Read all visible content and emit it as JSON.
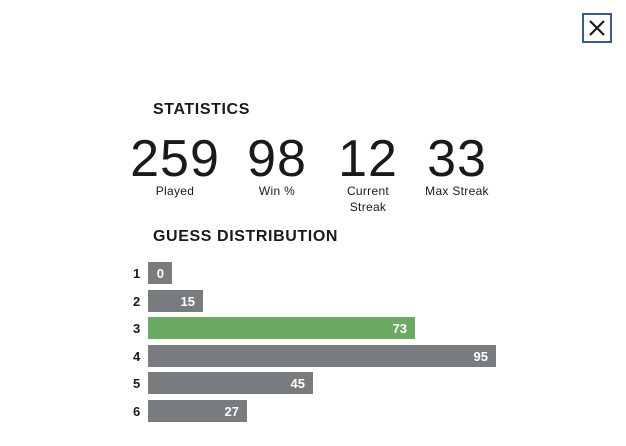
{
  "close": {
    "icon": "close-icon"
  },
  "statistics": {
    "heading": "STATISTICS",
    "played": {
      "value": "259",
      "label": "Played"
    },
    "win_pct": {
      "value": "98",
      "label": "Win %"
    },
    "current_streak": {
      "value": "12",
      "label_line1": "Current",
      "label_line2": "Streak"
    },
    "max_streak": {
      "value": "33",
      "label": "Max Streak"
    }
  },
  "distribution": {
    "heading": "GUESS DISTRIBUTION",
    "rows": [
      {
        "guess": "1",
        "count": 0
      },
      {
        "guess": "2",
        "count": 15
      },
      {
        "guess": "3",
        "count": 73,
        "highlight": true
      },
      {
        "guess": "4",
        "count": 95
      },
      {
        "guess": "5",
        "count": 45
      },
      {
        "guess": "6",
        "count": 27
      }
    ]
  },
  "colors": {
    "bar": "#787c7e",
    "bar_highlight": "#6aaa64",
    "close_border": "#3b5c8d"
  }
}
